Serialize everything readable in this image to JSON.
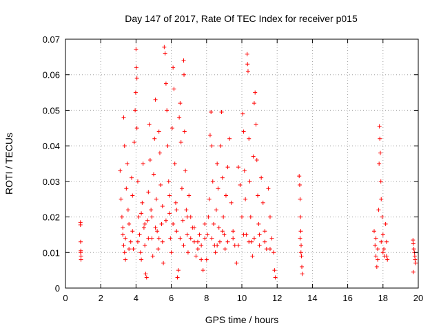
{
  "chart_data": {
    "type": "scatter",
    "title": "Day 147 of 2017, Rate Of TEC Index for receiver p015",
    "xlabel": "GPS time / hours",
    "ylabel": "ROTI / TECUs",
    "xlim": [
      0,
      20
    ],
    "ylim": [
      0,
      0.07
    ],
    "xticks": [
      0,
      2,
      4,
      6,
      8,
      10,
      12,
      14,
      16,
      18,
      20
    ],
    "yticks": [
      0,
      0.01,
      0.02,
      0.03,
      0.04,
      0.05,
      0.06,
      0.07
    ],
    "xtick_labels": [
      "0",
      "2",
      "4",
      "6",
      "8",
      "10",
      "12",
      "14",
      "16",
      "18",
      "20"
    ],
    "ytick_labels": [
      "0",
      "0.01",
      "0.02",
      "0.03",
      "0.04",
      "0.05",
      "0.06",
      "0.07"
    ],
    "grid": true,
    "marker": "+",
    "color": "#ff0000",
    "series": [
      {
        "name": "ROTI",
        "points": [
          [
            0.85,
            0.0185
          ],
          [
            0.85,
            0.0178
          ],
          [
            0.86,
            0.013
          ],
          [
            0.87,
            0.0105
          ],
          [
            0.88,
            0.009
          ],
          [
            0.88,
            0.008
          ],
          [
            0.86,
            0.01
          ],
          [
            3.1,
            0.033
          ],
          [
            3.15,
            0.025
          ],
          [
            3.2,
            0.02
          ],
          [
            3.25,
            0.015
          ],
          [
            3.3,
            0.012
          ],
          [
            3.35,
            0.01
          ],
          [
            3.4,
            0.008
          ],
          [
            3.45,
            0.028
          ],
          [
            3.3,
            0.048
          ],
          [
            3.35,
            0.04
          ],
          [
            3.5,
            0.035
          ],
          [
            3.55,
            0.022
          ],
          [
            3.6,
            0.018
          ],
          [
            3.7,
            0.013
          ],
          [
            3.75,
            0.031
          ],
          [
            3.8,
            0.026
          ],
          [
            3.85,
            0.011
          ],
          [
            3.9,
            0.041
          ],
          [
            3.95,
            0.05
          ],
          [
            3.98,
            0.055
          ],
          [
            4.0,
            0.0672
          ],
          [
            4.02,
            0.062
          ],
          [
            4.05,
            0.059
          ],
          [
            4.05,
            0.045
          ],
          [
            4.1,
            0.03
          ],
          [
            4.15,
            0.02
          ],
          [
            4.2,
            0.015
          ],
          [
            4.25,
            0.01
          ],
          [
            4.3,
            0.008
          ],
          [
            4.35,
            0.024
          ],
          [
            4.4,
            0.035
          ],
          [
            4.45,
            0.017
          ],
          [
            4.5,
            0.012
          ],
          [
            4.55,
            0.004
          ],
          [
            4.6,
            0.003
          ],
          [
            4.65,
            0.019
          ],
          [
            4.7,
            0.027
          ],
          [
            4.75,
            0.046
          ],
          [
            4.8,
            0.036
          ],
          [
            4.85,
            0.022
          ],
          [
            4.9,
            0.014
          ],
          [
            4.95,
            0.009
          ],
          [
            5.0,
            0.032
          ],
          [
            5.05,
            0.042
          ],
          [
            5.1,
            0.053
          ],
          [
            5.15,
            0.025
          ],
          [
            5.2,
            0.016
          ],
          [
            5.25,
            0.011
          ],
          [
            5.3,
            0.044
          ],
          [
            5.35,
            0.038
          ],
          [
            5.4,
            0.029
          ],
          [
            5.45,
            0.018
          ],
          [
            5.5,
            0.013
          ],
          [
            5.55,
            0.007
          ],
          [
            5.6,
            0.0678
          ],
          [
            5.65,
            0.066
          ],
          [
            5.7,
            0.0575
          ],
          [
            5.75,
            0.05
          ],
          [
            5.8,
            0.04
          ],
          [
            5.85,
            0.03
          ],
          [
            5.9,
            0.021
          ],
          [
            5.95,
            0.014
          ],
          [
            6.0,
            0.01
          ],
          [
            6.05,
            0.045
          ],
          [
            6.1,
            0.062
          ],
          [
            6.15,
            0.056
          ],
          [
            6.2,
            0.035
          ],
          [
            6.25,
            0.024
          ],
          [
            6.3,
            0.016
          ],
          [
            6.35,
            0.003
          ],
          [
            6.4,
            0.005
          ],
          [
            6.45,
            0.048
          ],
          [
            6.5,
            0.052
          ],
          [
            6.55,
            0.041
          ],
          [
            6.6,
            0.028
          ],
          [
            6.65,
            0.019
          ],
          [
            6.7,
            0.064
          ],
          [
            6.72,
            0.06
          ],
          [
            6.75,
            0.044
          ],
          [
            6.8,
            0.033
          ],
          [
            6.85,
            0.022
          ],
          [
            6.9,
            0.015
          ],
          [
            6.95,
            0.01
          ],
          [
            7.0,
            0.026
          ],
          [
            7.1,
            0.02
          ],
          [
            7.2,
            0.017
          ],
          [
            7.3,
            0.013
          ],
          [
            7.4,
            0.009
          ],
          [
            7.5,
            0.011
          ],
          [
            7.6,
            0.015
          ],
          [
            7.7,
            0.008
          ],
          [
            7.8,
            0.005
          ],
          [
            7.9,
            0.018
          ],
          [
            3.25,
            0.017
          ],
          [
            3.4,
            0.014
          ],
          [
            3.6,
            0.011
          ],
          [
            3.8,
            0.016
          ],
          [
            4.1,
            0.013
          ],
          [
            4.3,
            0.021
          ],
          [
            4.5,
            0.018
          ],
          [
            4.7,
            0.014
          ],
          [
            4.9,
            0.02
          ],
          [
            5.1,
            0.017
          ],
          [
            5.3,
            0.014
          ],
          [
            5.5,
            0.023
          ],
          [
            5.7,
            0.019
          ],
          [
            5.9,
            0.026
          ],
          [
            6.1,
            0.018
          ],
          [
            6.3,
            0.022
          ],
          [
            6.5,
            0.014
          ],
          [
            6.7,
            0.012
          ],
          [
            6.9,
            0.02
          ],
          [
            7.1,
            0.014
          ],
          [
            7.3,
            0.017
          ],
          [
            7.5,
            0.013
          ],
          [
            7.7,
            0.012
          ],
          [
            7.9,
            0.014
          ],
          [
            8.0,
            0.008
          ],
          [
            8.05,
            0.015
          ],
          [
            8.1,
            0.02
          ],
          [
            8.15,
            0.025
          ],
          [
            8.2,
            0.043
          ],
          [
            8.25,
            0.0495
          ],
          [
            8.3,
            0.04
          ],
          [
            8.35,
            0.03
          ],
          [
            8.4,
            0.018
          ],
          [
            8.45,
            0.012
          ],
          [
            8.5,
            0.01
          ],
          [
            8.55,
            0.022
          ],
          [
            8.6,
            0.035
          ],
          [
            8.65,
            0.028
          ],
          [
            8.7,
            0.017
          ],
          [
            8.75,
            0.013
          ],
          [
            8.8,
            0.04
          ],
          [
            8.85,
            0.0495
          ],
          [
            8.9,
            0.031
          ],
          [
            8.95,
            0.02
          ],
          [
            9.0,
            0.015
          ],
          [
            9.05,
            0.011
          ],
          [
            9.1,
            0.026
          ],
          [
            9.2,
            0.034
          ],
          [
            9.3,
            0.042
          ],
          [
            9.4,
            0.024
          ],
          [
            9.5,
            0.016
          ],
          [
            9.6,
            0.012
          ],
          [
            9.7,
            0.007
          ],
          [
            9.8,
            0.034
          ],
          [
            9.9,
            0.029
          ],
          [
            10.0,
            0.02
          ],
          [
            10.05,
            0.049
          ],
          [
            10.1,
            0.044
          ],
          [
            10.15,
            0.033
          ],
          [
            10.2,
            0.025
          ],
          [
            10.25,
            0.015
          ],
          [
            10.3,
            0.0658
          ],
          [
            10.32,
            0.063
          ],
          [
            10.35,
            0.061
          ],
          [
            10.4,
            0.042
          ],
          [
            10.45,
            0.03
          ],
          [
            10.5,
            0.02
          ],
          [
            10.55,
            0.013
          ],
          [
            10.6,
            0.009
          ],
          [
            10.65,
            0.037
          ],
          [
            10.7,
            0.052
          ],
          [
            10.75,
            0.055
          ],
          [
            10.8,
            0.046
          ],
          [
            10.85,
            0.036
          ],
          [
            10.9,
            0.026
          ],
          [
            10.95,
            0.018
          ],
          [
            11.0,
            0.012
          ],
          [
            11.1,
            0.031
          ],
          [
            11.2,
            0.024
          ],
          [
            11.3,
            0.016
          ],
          [
            11.4,
            0.011
          ],
          [
            11.5,
            0.028
          ],
          [
            11.6,
            0.02
          ],
          [
            11.7,
            0.014
          ],
          [
            11.8,
            0.01
          ],
          [
            11.85,
            0.005
          ],
          [
            11.9,
            0.003
          ],
          [
            8.3,
            0.014
          ],
          [
            8.6,
            0.012
          ],
          [
            8.9,
            0.016
          ],
          [
            9.2,
            0.013
          ],
          [
            9.5,
            0.014
          ],
          [
            9.8,
            0.012
          ],
          [
            10.1,
            0.015
          ],
          [
            10.4,
            0.013
          ],
          [
            10.7,
            0.014
          ],
          [
            11.0,
            0.015
          ],
          [
            11.3,
            0.013
          ],
          [
            11.6,
            0.011
          ],
          [
            13.25,
            0.0315
          ],
          [
            13.28,
            0.029
          ],
          [
            13.3,
            0.025
          ],
          [
            13.32,
            0.02
          ],
          [
            13.34,
            0.016
          ],
          [
            13.36,
            0.012
          ],
          [
            13.38,
            0.009
          ],
          [
            13.4,
            0.006
          ],
          [
            13.42,
            0.004
          ],
          [
            13.3,
            0.014
          ],
          [
            13.35,
            0.01
          ],
          [
            17.5,
            0.016
          ],
          [
            17.55,
            0.012
          ],
          [
            17.6,
            0.009
          ],
          [
            17.65,
            0.006
          ],
          [
            17.7,
            0.008
          ],
          [
            17.75,
            0.022
          ],
          [
            17.78,
            0.035
          ],
          [
            17.8,
            0.0455
          ],
          [
            17.82,
            0.042
          ],
          [
            17.85,
            0.038
          ],
          [
            17.88,
            0.03
          ],
          [
            17.9,
            0.025
          ],
          [
            17.95,
            0.02
          ],
          [
            18.0,
            0.015
          ],
          [
            18.05,
            0.011
          ],
          [
            18.1,
            0.009
          ],
          [
            18.15,
            0.018
          ],
          [
            18.2,
            0.013
          ],
          [
            18.25,
            0.008
          ],
          [
            17.6,
            0.014
          ],
          [
            17.7,
            0.011
          ],
          [
            17.9,
            0.013
          ],
          [
            18.0,
            0.01
          ],
          [
            18.2,
            0.009
          ],
          [
            19.7,
            0.0135
          ],
          [
            19.72,
            0.0125
          ],
          [
            19.75,
            0.011
          ],
          [
            19.78,
            0.01
          ],
          [
            19.8,
            0.009
          ],
          [
            19.82,
            0.008
          ],
          [
            19.85,
            0.007
          ],
          [
            19.72,
            0.0045
          ]
        ]
      }
    ]
  }
}
